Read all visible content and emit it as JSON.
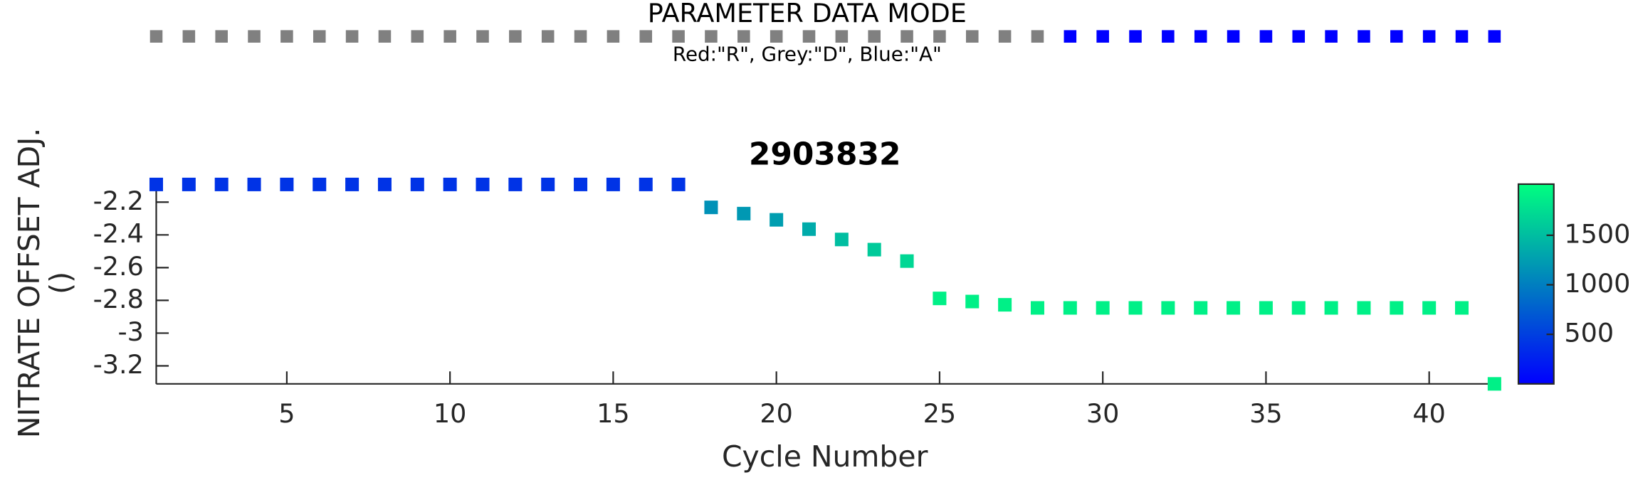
{
  "chart_data": {
    "type": "scatter",
    "title": "2903832",
    "x_label": "Cycle Number",
    "y_label": [
      "NITRATE OFFSET ADJ.",
      "()"
    ],
    "x": [
      1,
      2,
      3,
      4,
      5,
      6,
      7,
      8,
      9,
      10,
      11,
      12,
      13,
      14,
      15,
      16,
      17,
      18,
      19,
      20,
      21,
      22,
      23,
      24,
      25,
      26,
      27,
      28,
      29,
      30,
      31,
      32,
      33,
      34,
      35,
      36,
      37,
      38,
      39,
      40,
      41,
      42
    ],
    "series": [
      {
        "values": [
          -2.092,
          -2.092,
          -2.092,
          -2.092,
          -2.092,
          -2.092,
          -2.092,
          -2.092,
          -2.092,
          -2.092,
          -2.092,
          -2.092,
          -2.092,
          -2.092,
          -2.092,
          -2.092,
          -2.092,
          -2.232,
          -2.27,
          -2.308,
          -2.365,
          -2.428,
          -2.49,
          -2.56,
          -2.788,
          -2.807,
          -2.827,
          -2.846,
          -2.846,
          -2.846,
          -2.846,
          -2.846,
          -2.846,
          -2.846,
          -2.846,
          -2.846,
          -2.846,
          -2.846,
          -2.846,
          -2.846,
          -2.846,
          -3.31
        ],
        "color_values": [
          400,
          400,
          400,
          400,
          400,
          400,
          400,
          400,
          400,
          400,
          400,
          400,
          400,
          400,
          400,
          400,
          400,
          1150,
          1200,
          1250,
          1350,
          1500,
          1600,
          1700,
          1900,
          1900,
          1900,
          1900,
          1900,
          1900,
          1900,
          1900,
          1900,
          1900,
          1900,
          1900,
          1900,
          1900,
          1900,
          1900,
          1900,
          1900
        ]
      }
    ],
    "xlim": [
      1,
      42
    ],
    "ylim": [
      -3.31,
      -2.09
    ],
    "xticks": [
      5,
      10,
      15,
      20,
      25,
      30,
      35,
      40
    ],
    "yticks": [
      -3.2,
      -3,
      -2.8,
      -2.6,
      -2.4,
      -2.2
    ],
    "colorbar": {
      "lim": [
        0,
        2016
      ],
      "ticks": [
        500,
        1000,
        1500
      ],
      "colormap": [
        "#0000ff",
        "#00ff80"
      ]
    },
    "mode_strip": {
      "title": "PARAMETER DATA MODE",
      "subtitle": "Red:\"R\", Grey:\"D\", Blue:\"A\"",
      "modes": [
        "D",
        "D",
        "D",
        "D",
        "D",
        "D",
        "D",
        "D",
        "D",
        "D",
        "D",
        "D",
        "D",
        "D",
        "D",
        "D",
        "D",
        "D",
        "D",
        "D",
        "D",
        "D",
        "D",
        "D",
        "D",
        "D",
        "D",
        "D",
        "A",
        "A",
        "A",
        "A",
        "A",
        "A",
        "A",
        "A",
        "A",
        "A",
        "A",
        "A",
        "A",
        "A"
      ],
      "colors": {
        "R": "#ff0000",
        "D": "#808080",
        "A": "#0000ff"
      }
    }
  }
}
